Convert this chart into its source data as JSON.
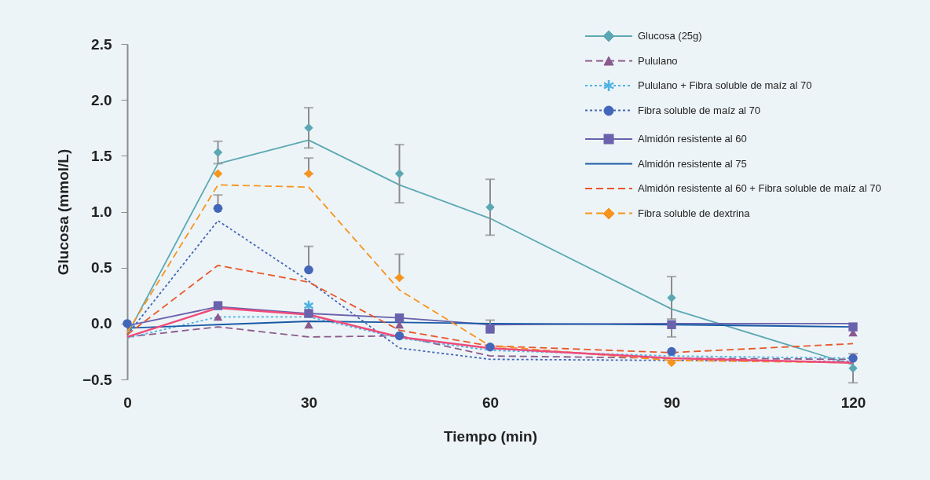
{
  "chart_data": {
    "type": "line",
    "xlabel": "Tiempo (min)",
    "ylabel": "Glucosa (mmol/L)",
    "x": [
      0,
      15,
      30,
      45,
      60,
      90,
      120
    ],
    "xlim": [
      0,
      120
    ],
    "xticks": [
      0,
      30,
      60,
      90,
      120
    ],
    "ylim": [
      -0.5,
      2.5
    ],
    "yticks": [
      -0.5,
      {
        "value": 0,
        "label": "0.0"
      },
      0.5,
      {
        "value": 1,
        "label": "1.0"
      },
      1.5,
      {
        "value": 2,
        "label": "2.0"
      },
      2.5
    ],
    "grid": false,
    "legend": "top right",
    "series": [
      {
        "name": "Glucosa (25g)",
        "color": "#5ba8b3",
        "line_style": "solid",
        "values": [
          -0.1,
          1.43,
          1.64,
          1.24,
          0.94,
          0.13,
          -0.37
        ]
      },
      {
        "name": "Pululano",
        "color": "#8b5a8c",
        "line_style": "dashed",
        "values": [
          -0.12,
          -0.03,
          -0.12,
          -0.11,
          -0.29,
          -0.31,
          -0.32
        ]
      },
      {
        "name": "Pululano + Fibra soluble de maíz al 70",
        "color": "#4eb3e3",
        "line_style": "dotted",
        "values": [
          -0.13,
          0.06,
          0.06,
          -0.13,
          -0.24,
          -0.29,
          -0.31
        ]
      },
      {
        "name": "Fibra soluble de maíz al 70",
        "color": "#4466b8",
        "line_style": "dotted",
        "values": [
          -0.1,
          0.92,
          0.38,
          -0.22,
          -0.32,
          -0.33,
          -0.34
        ]
      },
      {
        "name": "Almidón resistente al 60",
        "color": "#6a62ad",
        "line_style": "solid",
        "values": [
          -0.02,
          0.15,
          0.09,
          0.05,
          -0.01,
          0.0,
          0.0
        ]
      },
      {
        "name": "Almidón resistente al 75",
        "color": "#1a5aa6",
        "line_style": "solid",
        "values": [
          -0.04,
          -0.01,
          0.02,
          0.01,
          0.0,
          -0.01,
          -0.03
        ]
      },
      {
        "name": "Almidón resistente al 60 + Fibra soluble de maíz al 70",
        "color": "#e8572a",
        "line_style": "dashed",
        "values": [
          -0.1,
          0.52,
          0.37,
          -0.06,
          -0.2,
          -0.26,
          -0.18
        ]
      },
      {
        "name": "Fibra soluble de dextrina",
        "color": "#f7941d",
        "line_style": "dashed",
        "values": [
          -0.08,
          1.24,
          1.22,
          0.3,
          -0.2,
          -0.33,
          -0.35
        ]
      },
      {
        "color": "#ef4b7a",
        "line_style": "solid",
        "values": [
          -0.12,
          0.14,
          0.08,
          -0.12,
          -0.22,
          -0.31,
          -0.35
        ]
      },
      {
        "type": "scatter",
        "color": "#5ba8b3",
        "marker": "diamond",
        "values": [
          null,
          1.53,
          1.75,
          1.34,
          1.04,
          0.23,
          -0.4
        ],
        "errors": [
          null,
          0.1,
          0.18,
          0.26,
          0.25,
          0.19,
          0.13
        ]
      },
      {
        "type": "scatter",
        "color": "#8b5a8c",
        "marker": "triangle",
        "values": [
          null,
          0.06,
          -0.01,
          -0.01,
          null,
          null,
          -0.08
        ]
      },
      {
        "type": "scatter",
        "color": "#4eb3e3",
        "marker": "cross",
        "values": [
          null,
          null,
          0.16,
          null,
          null,
          null,
          null
        ]
      },
      {
        "type": "scatter",
        "color": "#4466b8",
        "marker": "circle",
        "values": [
          0.0,
          1.03,
          0.48,
          -0.11,
          -0.21,
          -0.25,
          -0.31
        ],
        "errors": [
          null,
          [
            1.03,
            1.15
          ],
          [
            0.48,
            0.69
          ],
          null,
          null,
          null,
          null
        ]
      },
      {
        "type": "scatter",
        "color": "#6a62ad",
        "marker": "square",
        "values": [
          null,
          0.16,
          0.09,
          0.05,
          -0.05,
          -0.01,
          -0.03
        ],
        "errors": [
          null,
          null,
          null,
          null,
          [
            -0.05,
            0.03
          ],
          [
            -0.12,
            -0.01
          ],
          null
        ]
      },
      {
        "type": "scatter",
        "color": "#f7941d",
        "marker": "diamond",
        "values": [
          null,
          1.34,
          1.34,
          0.41,
          null,
          -0.35,
          null
        ],
        "errors": [
          null,
          null,
          [
            1.34,
            1.48
          ],
          [
            0.41,
            0.62
          ],
          null,
          null,
          null
        ]
      }
    ]
  }
}
